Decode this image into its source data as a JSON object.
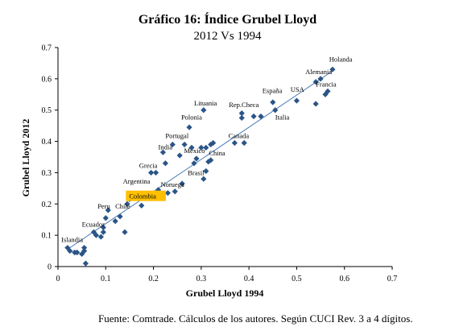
{
  "chart_data": {
    "type": "scatter",
    "title": "Gráfico 16: Índice Grubel Lloyd",
    "subtitle": "2012 Vs 1994",
    "xlabel": "Grubel Lloyd 1994",
    "ylabel": "Grubel Lloyd 2012",
    "xlim": [
      0,
      0.7
    ],
    "ylim": [
      0,
      0.7
    ],
    "xticks": [
      "0",
      "0.1",
      "0.2",
      "0.3",
      "0.4",
      "0.5",
      "0.6",
      "0.7"
    ],
    "yticks": [
      "0",
      "0.1",
      "0.2",
      "0.3",
      "0.4",
      "0.5",
      "0.6",
      "0.7"
    ],
    "grid": false,
    "legend": "none",
    "trendline": {
      "x": [
        0.02,
        0.575
      ],
      "y": [
        0.055,
        0.625
      ]
    },
    "marker_color": "#2a5587",
    "highlight_color": "#ffc000",
    "points": [
      {
        "x": 0.02,
        "y": 0.06
      },
      {
        "x": 0.025,
        "y": 0.05
      },
      {
        "x": 0.035,
        "y": 0.045
      },
      {
        "x": 0.04,
        "y": 0.045
      },
      {
        "x": 0.05,
        "y": 0.04
      },
      {
        "x": 0.055,
        "y": 0.05
      },
      {
        "x": 0.055,
        "y": 0.06
      },
      {
        "x": 0.058,
        "y": 0.01
      },
      {
        "x": 0.075,
        "y": 0.11
      },
      {
        "x": 0.08,
        "y": 0.1
      },
      {
        "x": 0.09,
        "y": 0.095
      },
      {
        "x": 0.095,
        "y": 0.125
      },
      {
        "x": 0.095,
        "y": 0.11
      },
      {
        "x": 0.1,
        "y": 0.155
      },
      {
        "x": 0.105,
        "y": 0.18
      },
      {
        "x": 0.12,
        "y": 0.145
      },
      {
        "x": 0.13,
        "y": 0.16
      },
      {
        "x": 0.14,
        "y": 0.11
      },
      {
        "x": 0.145,
        "y": 0.2
      },
      {
        "x": 0.15,
        "y": 0.215
      },
      {
        "x": 0.175,
        "y": 0.195
      },
      {
        "x": 0.195,
        "y": 0.3
      },
      {
        "x": 0.205,
        "y": 0.3
      },
      {
        "x": 0.21,
        "y": 0.245
      },
      {
        "x": 0.22,
        "y": 0.365
      },
      {
        "x": 0.225,
        "y": 0.33
      },
      {
        "x": 0.23,
        "y": 0.235
      },
      {
        "x": 0.24,
        "y": 0.39
      },
      {
        "x": 0.245,
        "y": 0.24
      },
      {
        "x": 0.255,
        "y": 0.355
      },
      {
        "x": 0.26,
        "y": 0.265
      },
      {
        "x": 0.265,
        "y": 0.39
      },
      {
        "x": 0.275,
        "y": 0.445
      },
      {
        "x": 0.28,
        "y": 0.38
      },
      {
        "x": 0.285,
        "y": 0.33
      },
      {
        "x": 0.29,
        "y": 0.345
      },
      {
        "x": 0.3,
        "y": 0.38
      },
      {
        "x": 0.305,
        "y": 0.28
      },
      {
        "x": 0.305,
        "y": 0.5
      },
      {
        "x": 0.31,
        "y": 0.38
      },
      {
        "x": 0.31,
        "y": 0.305
      },
      {
        "x": 0.315,
        "y": 0.335
      },
      {
        "x": 0.32,
        "y": 0.39
      },
      {
        "x": 0.32,
        "y": 0.34
      },
      {
        "x": 0.325,
        "y": 0.395
      },
      {
        "x": 0.37,
        "y": 0.395
      },
      {
        "x": 0.385,
        "y": 0.475
      },
      {
        "x": 0.385,
        "y": 0.49
      },
      {
        "x": 0.39,
        "y": 0.395
      },
      {
        "x": 0.41,
        "y": 0.48
      },
      {
        "x": 0.425,
        "y": 0.48
      },
      {
        "x": 0.45,
        "y": 0.525
      },
      {
        "x": 0.455,
        "y": 0.5
      },
      {
        "x": 0.5,
        "y": 0.53
      },
      {
        "x": 0.54,
        "y": 0.52
      },
      {
        "x": 0.54,
        "y": 0.59
      },
      {
        "x": 0.55,
        "y": 0.6
      },
      {
        "x": 0.56,
        "y": 0.55
      },
      {
        "x": 0.565,
        "y": 0.56
      },
      {
        "x": 0.575,
        "y": 0.63
      }
    ],
    "labels": [
      {
        "text": "Holanda",
        "x": 0.568,
        "y": 0.655
      },
      {
        "text": "Alemania",
        "x": 0.518,
        "y": 0.615
      },
      {
        "text": "Francia",
        "x": 0.54,
        "y": 0.575
      },
      {
        "text": "España",
        "x": 0.428,
        "y": 0.555
      },
      {
        "text": "USA",
        "x": 0.487,
        "y": 0.558
      },
      {
        "text": "Lituania",
        "x": 0.285,
        "y": 0.515
      },
      {
        "text": "Rep.Checa",
        "x": 0.358,
        "y": 0.51
      },
      {
        "text": "Polonia",
        "x": 0.258,
        "y": 0.47
      },
      {
        "text": "Italia",
        "x": 0.455,
        "y": 0.47
      },
      {
        "text": "Portugal",
        "x": 0.225,
        "y": 0.41
      },
      {
        "text": "Canada",
        "x": 0.357,
        "y": 0.41
      },
      {
        "text": "India",
        "x": 0.21,
        "y": 0.375
      },
      {
        "text": "Mexico",
        "x": 0.264,
        "y": 0.363
      },
      {
        "text": "China",
        "x": 0.316,
        "y": 0.355
      },
      {
        "text": "Grecia",
        "x": 0.17,
        "y": 0.315
      },
      {
        "text": "Brasil",
        "x": 0.272,
        "y": 0.292
      },
      {
        "text": "Argentina",
        "x": 0.136,
        "y": 0.265
      },
      {
        "text": "Noruega",
        "x": 0.215,
        "y": 0.255
      },
      {
        "text": "Colombia",
        "x": 0.149,
        "y": 0.217,
        "highlight": true
      },
      {
        "text": "Peru",
        "x": 0.083,
        "y": 0.185
      },
      {
        "text": "Chile",
        "x": 0.12,
        "y": 0.185
      },
      {
        "text": "Ecuador",
        "x": 0.05,
        "y": 0.128
      },
      {
        "text": "Islandia",
        "x": 0.007,
        "y": 0.078
      }
    ]
  },
  "source_note": "Fuente: Comtrade. Cálculos de los autores. Según CUCI Rev. 3 a 4 dígitos."
}
